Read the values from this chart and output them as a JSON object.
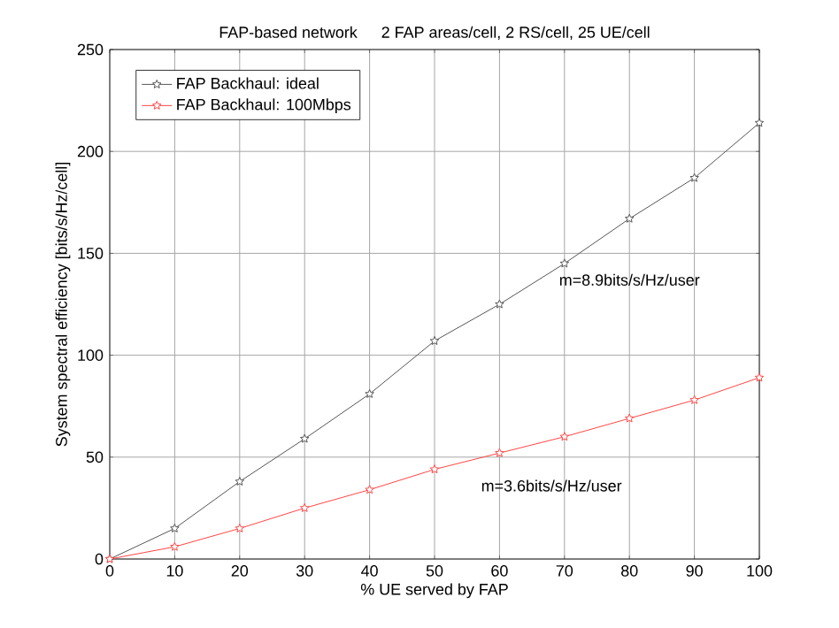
{
  "chart_data": {
    "type": "line",
    "title": "FAP-based network",
    "subtitle": "2 FAP areas/cell, 2 RS/cell, 25 UE/cell",
    "xlabel": "% UE served by FAP",
    "ylabel": "System spectral efficiency [bits/s/Hz/cell]",
    "x": [
      0,
      10,
      20,
      30,
      40,
      50,
      60,
      70,
      80,
      90,
      100
    ],
    "series": [
      {
        "name": "FAP Backhaul: ideal",
        "color": "#555555",
        "values": [
          0,
          15,
          38,
          59,
          81,
          107,
          125,
          145,
          167,
          187,
          214
        ]
      },
      {
        "name": "FAP Backhaul: 100Mbps",
        "color": "#ff4444",
        "values": [
          0,
          6,
          15,
          25,
          34,
          44,
          52,
          60,
          69,
          78,
          89
        ]
      }
    ],
    "xlim": [
      0,
      100
    ],
    "ylim": [
      0,
      250
    ],
    "xticks": [
      0,
      10,
      20,
      30,
      40,
      50,
      60,
      70,
      80,
      90,
      100
    ],
    "yticks": [
      0,
      50,
      100,
      150,
      200,
      250
    ],
    "annotations": [
      "m=8.9bits/s/Hz/user",
      "m=3.6bits/s/Hz/user"
    ],
    "grid": true,
    "legend": "top left",
    "marker": "star",
    "line_style": "solid"
  }
}
